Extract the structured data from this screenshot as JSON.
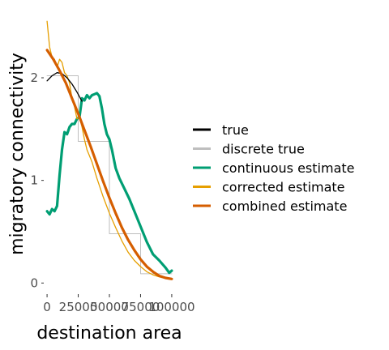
{
  "chart_data": {
    "type": "line",
    "title": "",
    "xlabel": "destination area",
    "ylabel": "migratory connectivity",
    "xlim": [
      -2000,
      102000
    ],
    "ylim": [
      -0.1,
      2.6
    ],
    "x_ticks": [
      0,
      25000,
      50000,
      75000,
      100000
    ],
    "x_tick_labels": [
      "0",
      "25000",
      "50000",
      "75000",
      "100000"
    ],
    "y_ticks": [
      0,
      1,
      2
    ],
    "y_tick_labels": [
      "0",
      "1",
      "2"
    ],
    "grid": false,
    "legend_position": "right",
    "series": [
      {
        "name": "true",
        "color": "#000000",
        "x": [
          0,
          4000,
          8000,
          12000,
          16000,
          20000,
          24000,
          28000
        ],
        "y": [
          1.97,
          2.02,
          2.05,
          2.04,
          2.0,
          1.94,
          1.86,
          1.77
        ]
      },
      {
        "name": "discrete true",
        "color": "#bebebe",
        "step": true,
        "x": [
          0,
          25000,
          25000,
          50000,
          50000,
          75000,
          75000,
          100000
        ],
        "y": [
          2.02,
          2.02,
          1.38,
          1.38,
          0.48,
          0.48,
          0.09,
          0.09
        ]
      },
      {
        "name": "continuous estimate",
        "color": "#009E73",
        "x": [
          0,
          2000,
          4000,
          6000,
          8000,
          10000,
          12000,
          14000,
          16000,
          18000,
          20000,
          22000,
          24000,
          26000,
          28000,
          30000,
          32000,
          34000,
          36000,
          38000,
          40000,
          42000,
          44000,
          46000,
          48000,
          50000,
          52000,
          55000,
          58000,
          62000,
          66000,
          70000,
          75000,
          80000,
          85000,
          90000,
          95000,
          98000,
          100000
        ],
        "y": [
          0.7,
          0.67,
          0.72,
          0.7,
          0.75,
          1.05,
          1.3,
          1.47,
          1.45,
          1.52,
          1.55,
          1.55,
          1.6,
          1.62,
          1.8,
          1.78,
          1.83,
          1.8,
          1.83,
          1.84,
          1.85,
          1.82,
          1.7,
          1.55,
          1.45,
          1.4,
          1.3,
          1.12,
          1.02,
          0.92,
          0.82,
          0.7,
          0.55,
          0.4,
          0.28,
          0.22,
          0.15,
          0.1,
          0.12
        ]
      },
      {
        "name": "corrected estimate",
        "color": "#E69F00",
        "x": [
          0,
          2000,
          4000,
          6000,
          8000,
          10000,
          12000,
          14000,
          16000,
          18000,
          20000,
          22000,
          24000,
          26000,
          28000,
          30000,
          32000,
          36000,
          40000,
          45000,
          50000,
          55000,
          60000,
          65000,
          70000,
          75000,
          80000,
          85000,
          90000,
          95000,
          100000
        ],
        "y": [
          2.55,
          2.3,
          2.2,
          2.18,
          2.1,
          2.18,
          2.15,
          2.05,
          2.02,
          1.95,
          1.8,
          1.72,
          1.6,
          1.62,
          1.52,
          1.4,
          1.3,
          1.18,
          1.02,
          0.84,
          0.68,
          0.54,
          0.41,
          0.3,
          0.22,
          0.16,
          0.11,
          0.08,
          0.06,
          0.045,
          0.04
        ]
      },
      {
        "name": "combined estimate",
        "color": "#D55E00",
        "x": [
          0,
          5000,
          10000,
          15000,
          20000,
          25000,
          30000,
          35000,
          40000,
          45000,
          50000,
          55000,
          60000,
          65000,
          70000,
          75000,
          80000,
          85000,
          90000,
          95000,
          100000
        ],
        "y": [
          2.27,
          2.18,
          2.07,
          1.95,
          1.8,
          1.65,
          1.49,
          1.33,
          1.16,
          0.99,
          0.83,
          0.68,
          0.54,
          0.42,
          0.32,
          0.23,
          0.16,
          0.11,
          0.07,
          0.05,
          0.04
        ]
      }
    ]
  }
}
